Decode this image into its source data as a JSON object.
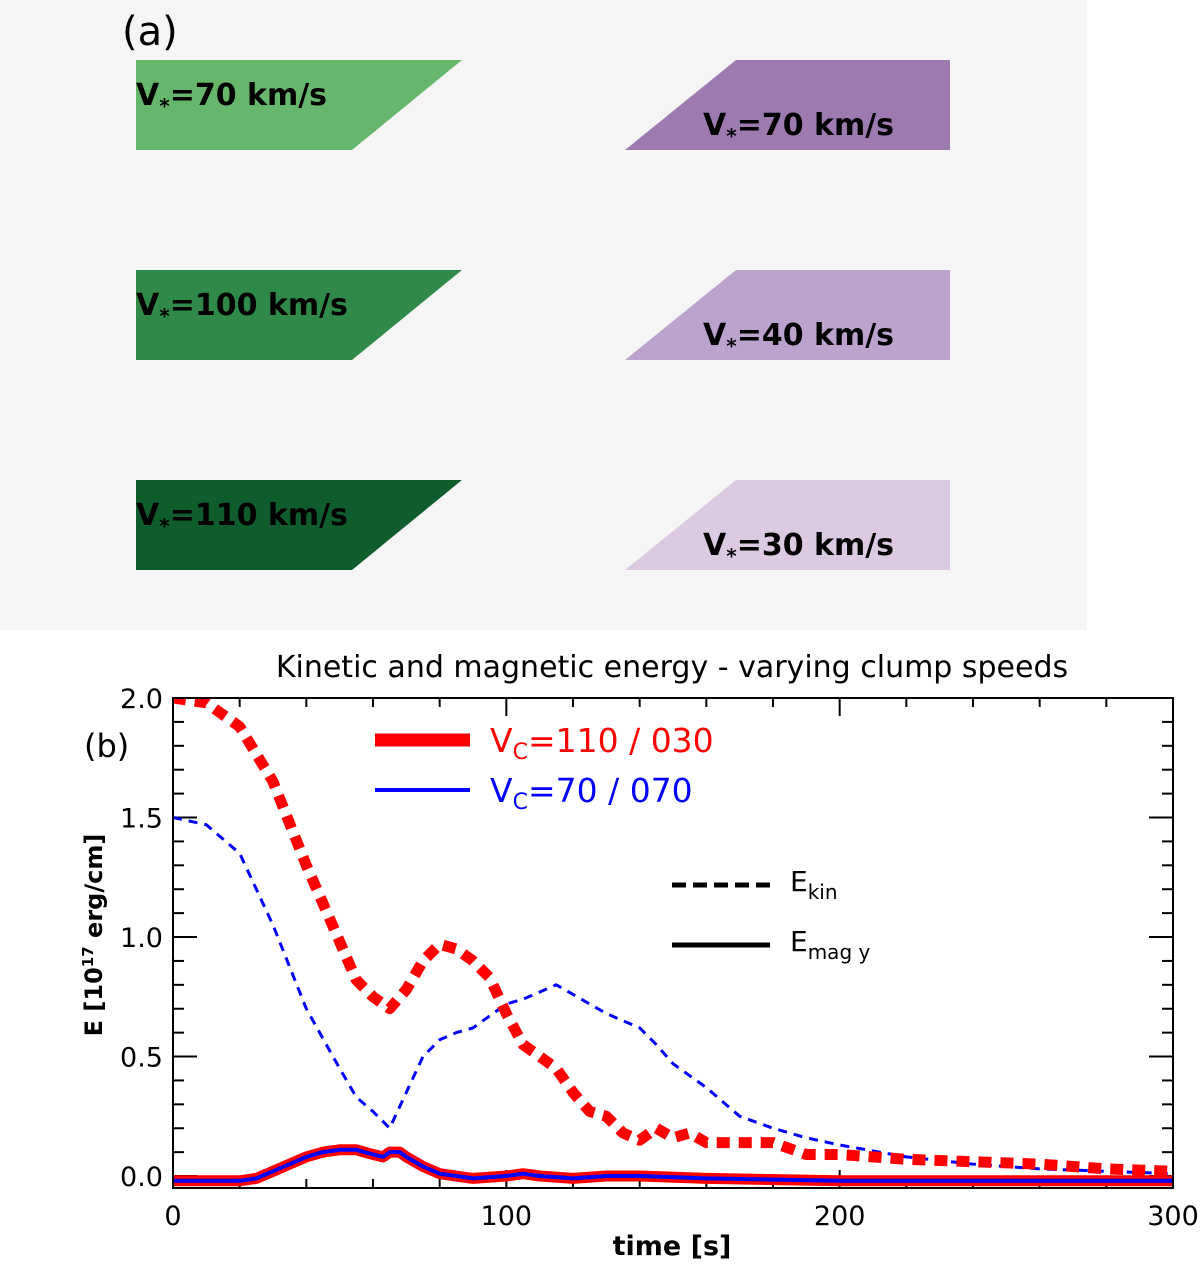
{
  "panel_a": {
    "label": "(a)",
    "colors": {
      "green_1": "#66b76b",
      "green_2": "#2f8a4a",
      "green_3": "#0f5c2c",
      "purple_1": "#9d7bb1",
      "purple_2": "#bca3cd",
      "purple_3": "#dccae2"
    },
    "clumps": [
      {
        "side": "left",
        "color_key": "green_1",
        "var": "V",
        "sub": "*",
        "value": "=70 km/s"
      },
      {
        "side": "left",
        "color_key": "green_2",
        "var": "V",
        "sub": "*",
        "value": "=100 km/s"
      },
      {
        "side": "left",
        "color_key": "green_3",
        "var": "V",
        "sub": "*",
        "value": "=110 km/s"
      },
      {
        "side": "right",
        "color_key": "purple_1",
        "var": "V",
        "sub": "*",
        "value": "=70 km/s"
      },
      {
        "side": "right",
        "color_key": "purple_2",
        "var": "V",
        "sub": "*",
        "value": "=40 km/s"
      },
      {
        "side": "right",
        "color_key": "purple_3",
        "var": "V",
        "sub": "*",
        "value": "=30 km/s"
      }
    ]
  },
  "chart_data": {
    "type": "line",
    "title": "Kinetic and magnetic energy - varying clump speeds",
    "panel_label": "(b)",
    "xlabel": "time [s]",
    "ylabel": "E [10",
    "ylabel_sup": "17",
    "ylabel_unit": " erg/cm]",
    "xlim": [
      0,
      300
    ],
    "ylim": [
      -0.05,
      2.0
    ],
    "xticks": [
      0,
      100,
      200,
      300
    ],
    "xtick_labels": [
      "0",
      "100",
      "200",
      "300"
    ],
    "yticks": [
      0.0,
      0.5,
      1.0,
      1.5,
      2.0
    ],
    "ytick_labels": [
      "0.0",
      "0.5",
      "1.0",
      "1.5",
      "2.0"
    ],
    "legend": {
      "series": [
        {
          "main": "V",
          "sub": "C",
          "rest": "=110 / 030",
          "color": "#ff0000"
        },
        {
          "main": "V",
          "sub": "C",
          "rest": "=70 / 070",
          "color": "#0000ff"
        }
      ],
      "styles": [
        {
          "main": "E",
          "sub": "kin",
          "style": "dashed"
        },
        {
          "main": "E",
          "sub": "mag y",
          "style": "solid"
        }
      ]
    },
    "series": [
      {
        "name": "Ekin Vc=110/030",
        "color": "#ff0000",
        "style": "dashed",
        "width": "thick",
        "x": [
          0,
          10,
          20,
          30,
          40,
          50,
          55,
          60,
          65,
          70,
          75,
          80,
          85,
          90,
          95,
          100,
          105,
          110,
          115,
          120,
          125,
          130,
          135,
          140,
          145,
          150,
          155,
          160,
          170,
          180,
          190,
          200,
          220,
          240,
          260,
          280,
          300
        ],
        "y": [
          2.0,
          1.98,
          1.88,
          1.65,
          1.3,
          0.98,
          0.82,
          0.75,
          0.7,
          0.78,
          0.9,
          0.97,
          0.95,
          0.9,
          0.83,
          0.68,
          0.55,
          0.5,
          0.45,
          0.35,
          0.27,
          0.25,
          0.18,
          0.15,
          0.2,
          0.16,
          0.18,
          0.14,
          0.14,
          0.14,
          0.09,
          0.09,
          0.07,
          0.06,
          0.05,
          0.03,
          0.02
        ]
      },
      {
        "name": "Ekin Vc=70/070",
        "color": "#0000ff",
        "style": "dashed",
        "width": "thin",
        "x": [
          0,
          10,
          20,
          30,
          40,
          50,
          55,
          60,
          65,
          70,
          75,
          80,
          85,
          90,
          95,
          100,
          105,
          110,
          115,
          120,
          125,
          130,
          135,
          140,
          145,
          150,
          160,
          170,
          180,
          190,
          200,
          220,
          240,
          260,
          280,
          300
        ],
        "y": [
          1.5,
          1.47,
          1.35,
          1.05,
          0.7,
          0.45,
          0.33,
          0.27,
          0.2,
          0.35,
          0.5,
          0.57,
          0.6,
          0.62,
          0.67,
          0.72,
          0.74,
          0.77,
          0.8,
          0.76,
          0.72,
          0.68,
          0.65,
          0.62,
          0.55,
          0.47,
          0.37,
          0.25,
          0.2,
          0.16,
          0.13,
          0.08,
          0.05,
          0.03,
          0.02,
          0.01
        ]
      },
      {
        "name": "Emag y Vc=110/030",
        "color": "#ff0000",
        "style": "solid",
        "width": "thick",
        "x": [
          0,
          10,
          20,
          25,
          30,
          35,
          40,
          45,
          50,
          55,
          60,
          63,
          65,
          68,
          70,
          75,
          80,
          90,
          100,
          105,
          110,
          120,
          130,
          140,
          160,
          200,
          250,
          300
        ],
        "y": [
          -0.02,
          -0.02,
          -0.02,
          -0.01,
          0.02,
          0.05,
          0.08,
          0.1,
          0.11,
          0.11,
          0.09,
          0.08,
          0.1,
          0.1,
          0.08,
          0.04,
          0.01,
          -0.01,
          0.0,
          0.01,
          0.0,
          -0.01,
          0.0,
          0.0,
          -0.01,
          -0.02,
          -0.02,
          -0.02
        ]
      },
      {
        "name": "Emag y Vc=70/070",
        "color": "#0000ff",
        "style": "solid",
        "width": "thin",
        "x": [
          0,
          10,
          20,
          25,
          30,
          35,
          40,
          45,
          50,
          55,
          60,
          63,
          65,
          68,
          70,
          75,
          80,
          90,
          100,
          105,
          110,
          120,
          130,
          140,
          160,
          200,
          250,
          300
        ],
        "y": [
          -0.02,
          -0.02,
          -0.02,
          -0.01,
          0.02,
          0.05,
          0.08,
          0.1,
          0.11,
          0.11,
          0.09,
          0.08,
          0.1,
          0.1,
          0.08,
          0.04,
          0.01,
          -0.01,
          0.0,
          0.01,
          0.0,
          -0.01,
          0.0,
          0.0,
          -0.01,
          -0.02,
          -0.02,
          -0.02
        ]
      }
    ]
  }
}
